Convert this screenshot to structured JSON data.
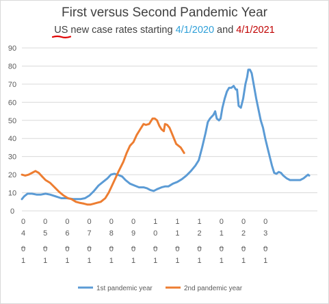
{
  "chart_data": {
    "type": "line",
    "title": "First versus Second Pandemic Year",
    "subtitle": {
      "part1": "US",
      "part2": " new case rates starting ",
      "date1": "4/1/2020",
      "part3": " and ",
      "date2": "4/1/2021"
    },
    "ylim": [
      0,
      90
    ],
    "yticks": [
      "0",
      "10",
      "20",
      "30",
      "40",
      "50",
      "60",
      "70",
      "80",
      "90"
    ],
    "grid": true,
    "legend_position": "bottom",
    "x_tick_labels": [
      {
        "l1": "0",
        "l2": "4",
        "l3": "_",
        "l4": "0",
        "l5": "1"
      },
      {
        "l1": "0",
        "l2": "5",
        "l3": "_",
        "l4": "0",
        "l5": "1"
      },
      {
        "l1": "0",
        "l2": "6",
        "l3": "_",
        "l4": "0",
        "l5": "1"
      },
      {
        "l1": "0",
        "l2": "7",
        "l3": "_",
        "l4": "0",
        "l5": "1"
      },
      {
        "l1": "0",
        "l2": "8",
        "l3": "_",
        "l4": "0",
        "l5": "1"
      },
      {
        "l1": "0",
        "l2": "9",
        "l3": "_",
        "l4": "0",
        "l5": "1"
      },
      {
        "l1": "1",
        "l2": "0",
        "l3": "_",
        "l4": "0",
        "l5": "1"
      },
      {
        "l1": "1",
        "l2": "1",
        "l3": "_",
        "l4": "0",
        "l5": "1"
      },
      {
        "l1": "1",
        "l2": "2",
        "l3": "_",
        "l4": "0",
        "l5": "1"
      },
      {
        "l1": "0",
        "l2": "1",
        "l3": "_",
        "l4": "0",
        "l5": "1"
      },
      {
        "l1": "0",
        "l2": "2",
        "l3": "_",
        "l4": "0",
        "l5": "1"
      },
      {
        "l1": "0",
        "l2": "3",
        "l3": "_",
        "l4": "0",
        "l5": "1"
      }
    ],
    "x_range_months": [
      0,
      12
    ],
    "series": [
      {
        "name": "1st pandemic year",
        "color": "#5b9bd5",
        "points": [
          [
            0,
            6.5
          ],
          [
            0.1,
            8
          ],
          [
            0.25,
            9.5
          ],
          [
            0.45,
            9.5
          ],
          [
            0.65,
            9
          ],
          [
            0.85,
            9
          ],
          [
            1.05,
            9.5
          ],
          [
            1.25,
            9
          ],
          [
            1.5,
            8
          ],
          [
            1.75,
            7
          ],
          [
            2,
            7
          ],
          [
            2.3,
            6.5
          ],
          [
            2.6,
            6.5
          ],
          [
            2.8,
            7
          ],
          [
            3,
            8.5
          ],
          [
            3.2,
            11
          ],
          [
            3.4,
            14
          ],
          [
            3.6,
            16
          ],
          [
            3.8,
            18
          ],
          [
            3.95,
            20
          ],
          [
            4.1,
            20.5
          ],
          [
            4.25,
            20
          ],
          [
            4.45,
            19
          ],
          [
            4.6,
            17
          ],
          [
            4.8,
            15
          ],
          [
            5,
            14
          ],
          [
            5.2,
            13
          ],
          [
            5.4,
            13
          ],
          [
            5.55,
            12.5
          ],
          [
            5.7,
            11.5
          ],
          [
            5.85,
            11
          ],
          [
            6,
            12
          ],
          [
            6.2,
            13
          ],
          [
            6.35,
            13.5
          ],
          [
            6.5,
            13.5
          ],
          [
            6.7,
            15
          ],
          [
            6.9,
            16
          ],
          [
            7.1,
            17.5
          ],
          [
            7.3,
            19.5
          ],
          [
            7.5,
            22
          ],
          [
            7.7,
            25
          ],
          [
            7.85,
            28
          ],
          [
            8,
            35
          ],
          [
            8.15,
            43
          ],
          [
            8.25,
            49
          ],
          [
            8.35,
            51
          ],
          [
            8.5,
            53
          ],
          [
            8.58,
            55
          ],
          [
            8.65,
            51
          ],
          [
            8.75,
            50
          ],
          [
            8.82,
            51
          ],
          [
            8.9,
            57
          ],
          [
            9,
            62
          ],
          [
            9.1,
            66
          ],
          [
            9.2,
            68
          ],
          [
            9.3,
            68
          ],
          [
            9.4,
            69
          ],
          [
            9.5,
            67
          ],
          [
            9.55,
            67
          ],
          [
            9.62,
            58
          ],
          [
            9.72,
            57
          ],
          [
            9.82,
            62
          ],
          [
            9.92,
            70
          ],
          [
            10,
            74
          ],
          [
            10.05,
            78
          ],
          [
            10.12,
            78
          ],
          [
            10.2,
            76
          ],
          [
            10.3,
            69
          ],
          [
            10.4,
            62
          ],
          [
            10.5,
            56
          ],
          [
            10.6,
            50
          ],
          [
            10.7,
            46
          ],
          [
            10.8,
            40
          ],
          [
            10.9,
            35
          ],
          [
            11,
            30
          ],
          [
            11.1,
            25
          ],
          [
            11.2,
            21
          ],
          [
            11.3,
            20.5
          ],
          [
            11.4,
            21.5
          ],
          [
            11.5,
            21
          ],
          [
            11.6,
            19.5
          ],
          [
            11.75,
            18
          ],
          [
            11.9,
            17
          ],
          [
            12.05,
            17
          ],
          [
            12.2,
            17
          ],
          [
            12.35,
            17
          ],
          [
            12.5,
            18
          ],
          [
            12.6,
            19
          ],
          [
            12.7,
            20
          ],
          [
            12.75,
            19.5
          ]
        ]
      },
      {
        "name": "2nd pandemic year",
        "color": "#ed7d31",
        "points": [
          [
            0,
            20
          ],
          [
            0.15,
            19.5
          ],
          [
            0.3,
            20
          ],
          [
            0.45,
            21
          ],
          [
            0.6,
            22
          ],
          [
            0.75,
            21
          ],
          [
            0.9,
            19
          ],
          [
            1.05,
            17
          ],
          [
            1.25,
            15.5
          ],
          [
            1.45,
            13
          ],
          [
            1.65,
            10.5
          ],
          [
            1.85,
            8.5
          ],
          [
            2.05,
            7
          ],
          [
            2.2,
            6.5
          ],
          [
            2.4,
            5
          ],
          [
            2.55,
            4.5
          ],
          [
            2.75,
            4
          ],
          [
            2.9,
            3.5
          ],
          [
            3.05,
            3.5
          ],
          [
            3.2,
            4
          ],
          [
            3.35,
            4.5
          ],
          [
            3.5,
            5
          ],
          [
            3.7,
            7
          ],
          [
            3.85,
            10
          ],
          [
            4,
            14
          ],
          [
            4.15,
            18
          ],
          [
            4.3,
            22
          ],
          [
            4.5,
            27
          ],
          [
            4.65,
            32
          ],
          [
            4.8,
            36
          ],
          [
            4.95,
            38
          ],
          [
            5.1,
            42
          ],
          [
            5.25,
            45
          ],
          [
            5.4,
            48
          ],
          [
            5.5,
            47.5
          ],
          [
            5.65,
            48
          ],
          [
            5.8,
            51
          ],
          [
            5.9,
            51
          ],
          [
            6,
            50
          ],
          [
            6.1,
            47
          ],
          [
            6.2,
            45
          ],
          [
            6.3,
            44
          ],
          [
            6.35,
            48
          ],
          [
            6.45,
            47.5
          ],
          [
            6.55,
            46
          ],
          [
            6.65,
            43
          ],
          [
            6.75,
            40
          ],
          [
            6.85,
            37
          ],
          [
            6.95,
            36
          ],
          [
            7.05,
            35
          ],
          [
            7.15,
            33
          ],
          [
            7.2,
            32
          ]
        ]
      }
    ]
  }
}
